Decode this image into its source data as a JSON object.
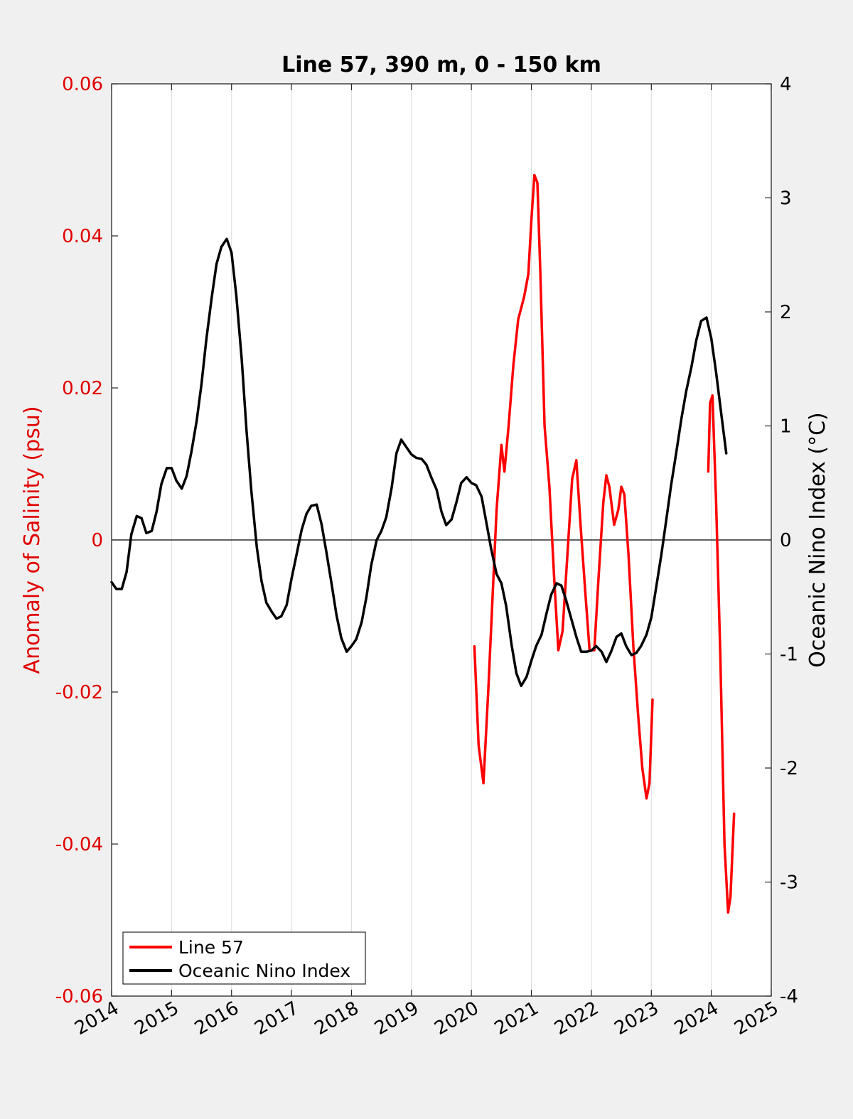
{
  "chart_data": {
    "type": "line",
    "title": "Line 57, 390 m, 0 - 150 km",
    "ylabel_left": "Anomaly of Salinity (psu)",
    "ylabel_right": "Oceanic Nino Index (°C)",
    "xlim": [
      2014,
      2025
    ],
    "ylim_left": [
      -0.06,
      0.06
    ],
    "ylim_right": [
      -4,
      4
    ],
    "x_ticks": [
      "2014",
      "2015",
      "2016",
      "2017",
      "2018",
      "2019",
      "2020",
      "2021",
      "2022",
      "2023",
      "2024",
      "2025"
    ],
    "y_left_ticks": [
      "0.06",
      "0.04",
      "0.02",
      "0",
      "-0.02",
      "-0.04",
      "-0.06"
    ],
    "y_right_ticks": [
      "4",
      "3",
      "2",
      "1",
      "0",
      "-1",
      "-2",
      "-3",
      "-4"
    ],
    "grid": "vertical",
    "zero_line": true,
    "legend": {
      "placement": "bottom-left",
      "entries": [
        {
          "label": "Line 57",
          "color": "#ff0000"
        },
        {
          "label": "Oceanic Nino Index",
          "color": "#000000"
        }
      ]
    },
    "series": [
      {
        "name": "Line 57",
        "axis": "left",
        "color": "#ff0000",
        "segments": [
          [
            [
              2020.05,
              -0.014
            ],
            [
              2020.12,
              -0.027
            ],
            [
              2020.2,
              -0.032
            ],
            [
              2020.28,
              -0.02
            ],
            [
              2020.35,
              -0.008
            ],
            [
              2020.42,
              0.004
            ],
            [
              2020.5,
              0.0125
            ],
            [
              2020.55,
              0.009
            ],
            [
              2020.62,
              0.015
            ],
            [
              2020.7,
              0.023
            ],
            [
              2020.78,
              0.029
            ],
            [
              2020.88,
              0.032
            ],
            [
              2020.95,
              0.035
            ],
            [
              2021.0,
              0.042
            ],
            [
              2021.05,
              0.048
            ],
            [
              2021.1,
              0.047
            ],
            [
              2021.15,
              0.035
            ],
            [
              2021.22,
              0.015
            ],
            [
              2021.3,
              0.007
            ],
            [
              2021.38,
              -0.005
            ],
            [
              2021.45,
              -0.0145
            ],
            [
              2021.52,
              -0.012
            ],
            [
              2021.6,
              -0.002
            ],
            [
              2021.68,
              0.008
            ],
            [
              2021.75,
              0.0105
            ],
            [
              2021.82,
              0.002
            ],
            [
              2021.9,
              -0.007
            ],
            [
              2021.97,
              -0.0145
            ],
            [
              2022.05,
              -0.0145
            ],
            [
              2022.12,
              -0.005
            ],
            [
              2022.2,
              0.005
            ],
            [
              2022.25,
              0.0085
            ],
            [
              2022.3,
              0.007
            ],
            [
              2022.38,
              0.002
            ],
            [
              2022.45,
              0.004
            ],
            [
              2022.5,
              0.007
            ],
            [
              2022.55,
              0.006
            ],
            [
              2022.62,
              -0.002
            ],
            [
              2022.7,
              -0.014
            ],
            [
              2022.78,
              -0.023
            ],
            [
              2022.85,
              -0.03
            ],
            [
              2022.92,
              -0.034
            ],
            [
              2022.97,
              -0.032
            ],
            [
              2023.02,
              -0.021
            ]
          ],
          [
            [
              2023.95,
              0.009
            ],
            [
              2023.98,
              0.018
            ],
            [
              2024.02,
              0.019
            ],
            [
              2024.08,
              0.005
            ],
            [
              2024.15,
              -0.015
            ],
            [
              2024.22,
              -0.04
            ],
            [
              2024.28,
              -0.049
            ],
            [
              2024.32,
              -0.047
            ],
            [
              2024.38,
              -0.036
            ]
          ]
        ]
      },
      {
        "name": "Oceanic Nino Index",
        "axis": "right",
        "color": "#000000",
        "segments": [
          [
            [
              2014.0,
              -0.37
            ],
            [
              2014.08,
              -0.43
            ],
            [
              2014.17,
              -0.43
            ],
            [
              2014.25,
              -0.28
            ],
            [
              2014.33,
              0.05
            ],
            [
              2014.42,
              0.21
            ],
            [
              2014.5,
              0.19
            ],
            [
              2014.58,
              0.06
            ],
            [
              2014.67,
              0.08
            ],
            [
              2014.75,
              0.25
            ],
            [
              2014.83,
              0.49
            ],
            [
              2014.92,
              0.63
            ],
            [
              2015.0,
              0.63
            ],
            [
              2015.08,
              0.52
            ],
            [
              2015.17,
              0.45
            ],
            [
              2015.25,
              0.56
            ],
            [
              2015.33,
              0.77
            ],
            [
              2015.42,
              1.05
            ],
            [
              2015.5,
              1.37
            ],
            [
              2015.58,
              1.76
            ],
            [
              2015.67,
              2.13
            ],
            [
              2015.75,
              2.42
            ],
            [
              2015.83,
              2.57
            ],
            [
              2015.92,
              2.64
            ],
            [
              2016.0,
              2.52
            ],
            [
              2016.08,
              2.14
            ],
            [
              2016.17,
              1.58
            ],
            [
              2016.25,
              0.96
            ],
            [
              2016.33,
              0.43
            ],
            [
              2016.42,
              -0.06
            ],
            [
              2016.5,
              -0.36
            ],
            [
              2016.58,
              -0.55
            ],
            [
              2016.67,
              -0.63
            ],
            [
              2016.75,
              -0.69
            ],
            [
              2016.83,
              -0.67
            ],
            [
              2016.92,
              -0.57
            ],
            [
              2017.0,
              -0.34
            ],
            [
              2017.08,
              -0.14
            ],
            [
              2017.17,
              0.09
            ],
            [
              2017.25,
              0.23
            ],
            [
              2017.33,
              0.3
            ],
            [
              2017.42,
              0.31
            ],
            [
              2017.5,
              0.14
            ],
            [
              2017.58,
              -0.1
            ],
            [
              2017.67,
              -0.39
            ],
            [
              2017.75,
              -0.66
            ],
            [
              2017.83,
              -0.86
            ],
            [
              2017.92,
              -0.98
            ],
            [
              2018.0,
              -0.93
            ],
            [
              2018.08,
              -0.87
            ],
            [
              2018.17,
              -0.72
            ],
            [
              2018.25,
              -0.5
            ],
            [
              2018.33,
              -0.22
            ],
            [
              2018.42,
              0.0
            ],
            [
              2018.5,
              0.08
            ],
            [
              2018.58,
              0.2
            ],
            [
              2018.67,
              0.46
            ],
            [
              2018.75,
              0.76
            ],
            [
              2018.83,
              0.88
            ],
            [
              2018.92,
              0.81
            ],
            [
              2019.0,
              0.75
            ],
            [
              2019.08,
              0.72
            ],
            [
              2019.17,
              0.71
            ],
            [
              2019.25,
              0.66
            ],
            [
              2019.33,
              0.55
            ],
            [
              2019.42,
              0.44
            ],
            [
              2019.5,
              0.25
            ],
            [
              2019.58,
              0.13
            ],
            [
              2019.67,
              0.18
            ],
            [
              2019.75,
              0.33
            ],
            [
              2019.83,
              0.5
            ],
            [
              2019.92,
              0.55
            ],
            [
              2020.0,
              0.5
            ],
            [
              2020.08,
              0.48
            ],
            [
              2020.17,
              0.38
            ],
            [
              2020.25,
              0.15
            ],
            [
              2020.33,
              -0.08
            ],
            [
              2020.42,
              -0.3
            ],
            [
              2020.5,
              -0.38
            ],
            [
              2020.58,
              -0.58
            ],
            [
              2020.67,
              -0.92
            ],
            [
              2020.75,
              -1.17
            ],
            [
              2020.83,
              -1.28
            ],
            [
              2020.92,
              -1.2
            ],
            [
              2021.0,
              -1.06
            ],
            [
              2021.08,
              -0.93
            ],
            [
              2021.17,
              -0.83
            ],
            [
              2021.25,
              -0.65
            ],
            [
              2021.33,
              -0.48
            ],
            [
              2021.42,
              -0.38
            ],
            [
              2021.5,
              -0.4
            ],
            [
              2021.58,
              -0.53
            ],
            [
              2021.67,
              -0.7
            ],
            [
              2021.75,
              -0.85
            ],
            [
              2021.83,
              -0.98
            ],
            [
              2021.92,
              -0.98
            ],
            [
              2022.0,
              -0.97
            ],
            [
              2022.08,
              -0.93
            ],
            [
              2022.17,
              -0.98
            ],
            [
              2022.25,
              -1.07
            ],
            [
              2022.33,
              -0.98
            ],
            [
              2022.42,
              -0.85
            ],
            [
              2022.5,
              -0.82
            ],
            [
              2022.58,
              -0.93
            ],
            [
              2022.67,
              -1.01
            ],
            [
              2022.75,
              -0.99
            ],
            [
              2022.83,
              -0.93
            ],
            [
              2022.92,
              -0.83
            ],
            [
              2023.0,
              -0.68
            ],
            [
              2023.08,
              -0.42
            ],
            [
              2023.17,
              -0.12
            ],
            [
              2023.25,
              0.18
            ],
            [
              2023.33,
              0.48
            ],
            [
              2023.42,
              0.78
            ],
            [
              2023.5,
              1.06
            ],
            [
              2023.58,
              1.3
            ],
            [
              2023.67,
              1.52
            ],
            [
              2023.75,
              1.75
            ],
            [
              2023.83,
              1.92
            ],
            [
              2023.92,
              1.95
            ],
            [
              2024.0,
              1.77
            ],
            [
              2024.08,
              1.47
            ],
            [
              2024.17,
              1.09
            ],
            [
              2024.25,
              0.76
            ]
          ]
        ]
      }
    ]
  }
}
